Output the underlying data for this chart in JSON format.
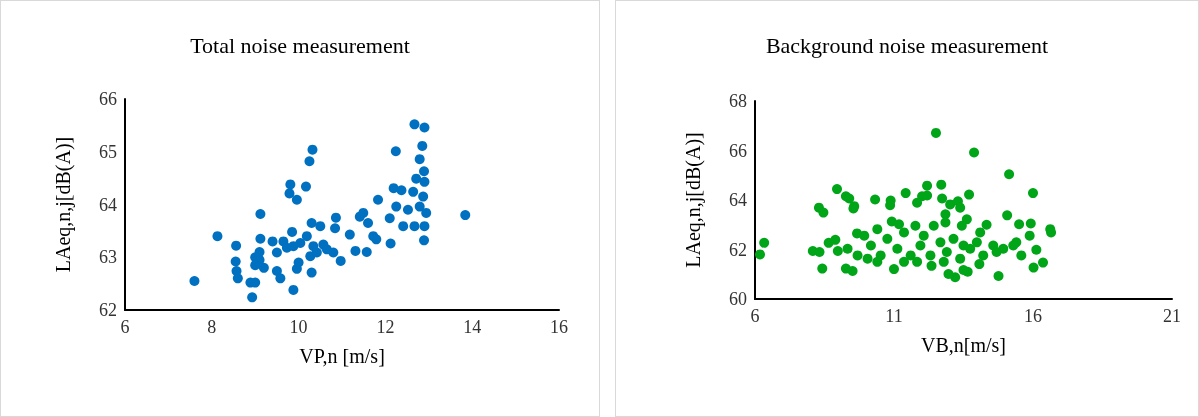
{
  "chart_data": [
    {
      "type": "scatter",
      "title": "Total noise measurement",
      "xlabel": "VP,n [m/s]",
      "ylabel": "LAeq,n,j[dB(A)]",
      "color": "#0070c0",
      "marker": "circle",
      "grid": false,
      "xlim": [
        6,
        16
      ],
      "xticks": [
        6,
        8,
        10,
        12,
        14,
        16
      ],
      "ylim": [
        62,
        66
      ],
      "yticks": [
        62,
        63,
        64,
        65,
        66
      ],
      "x": [
        7.6,
        8.13,
        8.56,
        8.55,
        8.57,
        8.6,
        8.89,
        9.0,
        8.93,
        9.12,
        9.12,
        9.0,
        9.1,
        9.1,
        9.2,
        9.0,
        9.4,
        9.65,
        9.5,
        9.58,
        9.81,
        9.79,
        9.96,
        10.17,
        10.32,
        10.25,
        9.88,
        9.85,
        9.96,
        10.0,
        9.5,
        9.73,
        9.88,
        10.04,
        10.19,
        10.3,
        10.5,
        10.34,
        10.27,
        10.3,
        10.42,
        10.57,
        10.65,
        10.8,
        10.86,
        10.84,
        10.97,
        11.18,
        11.31,
        11.41,
        11.49,
        11.57,
        11.6,
        11.72,
        11.83,
        11.79,
        12.1,
        12.12,
        12.19,
        12.25,
        12.37,
        12.41,
        12.52,
        12.64,
        12.71,
        12.67,
        12.79,
        12.87,
        12.9,
        12.89,
        12.94,
        12.9,
        12.89,
        12.79,
        12.85,
        12.9,
        12.67,
        12.24,
        13.84
      ],
      "values": [
        62.55,
        63.4,
        63.22,
        62.92,
        62.74,
        62.6,
        62.52,
        62.52,
        62.24,
        63.82,
        63.35,
        63.0,
        63.1,
        62.95,
        62.8,
        62.85,
        63.3,
        63.3,
        62.74,
        62.6,
        64.38,
        64.21,
        64.09,
        64.34,
        65.04,
        64.82,
        62.38,
        63.48,
        62.78,
        62.9,
        63.09,
        63.18,
        63.21,
        63.27,
        63.4,
        63.65,
        63.59,
        63.21,
        63.02,
        62.71,
        63.09,
        63.24,
        63.15,
        63.09,
        63.75,
        63.55,
        62.93,
        63.43,
        63.12,
        63.77,
        63.84,
        63.1,
        63.65,
        63.4,
        64.09,
        63.34,
        63.74,
        63.26,
        64.31,
        63.96,
        64.27,
        63.59,
        63.9,
        64.24,
        64.49,
        63.59,
        63.96,
        64.15,
        63.59,
        63.32,
        63.84,
        64.43,
        64.63,
        64.86,
        65.11,
        65.46,
        65.52,
        65.01,
        63.8
      ]
    },
    {
      "type": "scatter",
      "title": "Background noise measurement",
      "xlabel": "VB,n[m/s]",
      "ylabel": "LAeq,n,j[dB(A)]",
      "color": "#00a518",
      "marker": "circle",
      "grid": false,
      "xlim": [
        6,
        21
      ],
      "xticks": [
        6,
        11,
        16,
        21
      ],
      "ylim": [
        60,
        68
      ],
      "yticks": [
        60,
        62,
        64,
        66,
        68
      ],
      "x": [
        6.18,
        6.33,
        8.08,
        8.32,
        8.42,
        8.3,
        8.46,
        8.95,
        9.27,
        9.39,
        9.57,
        9.54,
        8.65,
        8.89,
        8.98,
        9.27,
        9.51,
        9.67,
        9.93,
        10.32,
        10.88,
        10.86,
        11.42,
        11.0,
        10.92,
        12.19,
        12.7,
        12.51,
        12.01,
        12.19,
        11.83,
        12.73,
        13.02,
        13.3,
        13.38,
        12.85,
        12.85,
        13.7,
        13.88,
        13.62,
        13.44,
        14.33,
        15.14,
        15.07,
        15.5,
        15.92,
        16.0,
        16.62,
        16.65,
        16.36,
        16.02,
        16.12,
        15.88,
        15.4,
        15.58,
        14.76,
        14.07,
        13.65,
        13.5,
        13.2,
        12.96,
        12.35,
        10.17,
        10.52,
        10.76,
        11.12,
        11.36,
        11.6,
        11.77,
        11.95,
        12.31,
        12.43,
        12.67,
        12.9,
        13.14,
        13.38,
        13.5,
        13.74,
        13.98,
        14.1,
        14.21,
        14.57,
        14.69,
        14.93,
        15.29,
        9.33,
        9.69,
        10.05,
        10.4,
        11.83,
        12.07,
        11.36,
        12.79,
        10.4,
        11.18
      ],
      "values": [
        61.8,
        62.27,
        61.94,
        61.9,
        61.23,
        63.69,
        63.49,
        64.44,
        64.15,
        64.06,
        63.75,
        63.66,
        62.27,
        62.39,
        61.94,
        61.23,
        61.13,
        62.65,
        62.56,
        64.02,
        63.98,
        63.79,
        64.28,
        61.21,
        63.13,
        64.58,
        64.62,
        66.71,
        64.15,
        64.18,
        63.89,
        64.06,
        63.82,
        63.95,
        63.69,
        63.42,
        63.09,
        64.22,
        65.92,
        63.22,
        62.96,
        63.0,
        65.04,
        63.38,
        63.02,
        63.05,
        64.28,
        62.82,
        62.69,
        61.47,
        61.27,
        61.99,
        62.56,
        62.29,
        61.76,
        60.93,
        61.41,
        61.1,
        61.17,
        60.88,
        61.01,
        61.34,
        62.16,
        61.76,
        62.43,
        62.03,
        62.69,
        61.76,
        62.96,
        62.16,
        61.76,
        62.96,
        62.29,
        61.9,
        62.43,
        61.63,
        62.16,
        62.03,
        62.29,
        62.69,
        61.76,
        62.16,
        61.9,
        62.03,
        62.16,
        62.03,
        61.76,
        61.63,
        61.5,
        61.5,
        62.56,
        61.5,
        61.5,
        62.82,
        63.02
      ]
    }
  ]
}
